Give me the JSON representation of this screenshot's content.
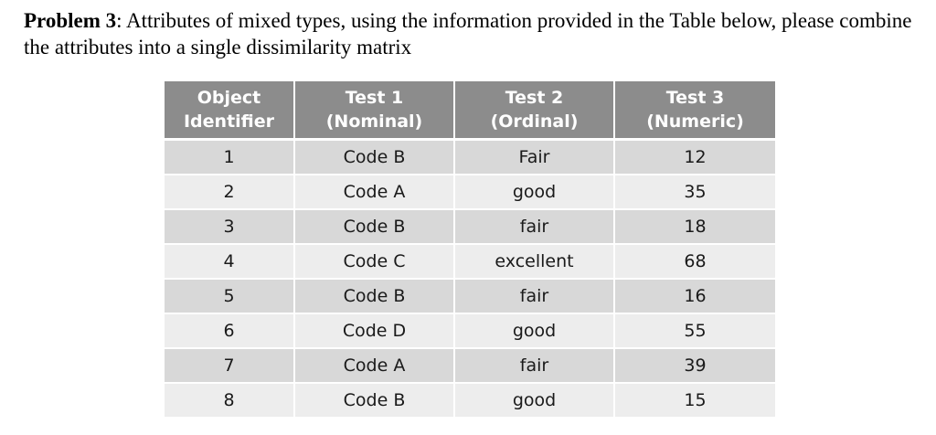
{
  "problem": {
    "label": "Problem 3",
    "text": ": Attributes of mixed types, using the information provided in the Table below, please combine the attributes into a single dissimilarity matrix"
  },
  "table": {
    "headers": [
      {
        "line1": "Object",
        "line2": "Identifier"
      },
      {
        "line1": "Test 1",
        "line2": "(Nominal)"
      },
      {
        "line1": "Test 2",
        "line2": "(Ordinal)"
      },
      {
        "line1": "Test 3",
        "line2": "(Numeric)"
      }
    ],
    "rows": [
      [
        "1",
        "Code B",
        "Fair",
        "12"
      ],
      [
        "2",
        "Code A",
        "good",
        "35"
      ],
      [
        "3",
        "Code B",
        "fair",
        "18"
      ],
      [
        "4",
        "Code C",
        "excellent",
        "68"
      ],
      [
        "5",
        "Code B",
        "fair",
        "16"
      ],
      [
        "6",
        "Code D",
        "good",
        "55"
      ],
      [
        "7",
        "Code A",
        "fair",
        "39"
      ],
      [
        "8",
        "Code B",
        "good",
        "15"
      ]
    ]
  }
}
